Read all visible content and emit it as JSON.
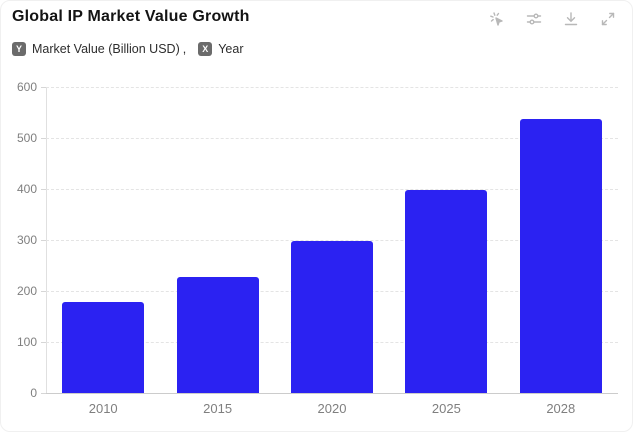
{
  "header": {
    "title": "Global IP Market Value Growth",
    "axis_legend": {
      "y_badge": "Y",
      "y_label": "Market Value (Billion USD)",
      "separator": ",",
      "x_badge": "X",
      "x_label": "Year"
    },
    "toolbar_icons": [
      "click-pointer-icon",
      "sliders-icon",
      "download-icon",
      "expand-icon"
    ]
  },
  "colors": {
    "bar": "#2b22f2",
    "grid": "#e4e4e4",
    "axis": "#cccccc",
    "tick_label": "#7f7f7f",
    "icon": "#b8b8b8",
    "badge_bg": "#6b6b6b",
    "title_text": "#141414"
  },
  "chart_data": {
    "type": "bar",
    "title": "Global IP Market Value Growth",
    "categories": [
      "2010",
      "2015",
      "2020",
      "2025",
      "2028"
    ],
    "values": [
      178,
      228,
      298,
      398,
      538
    ],
    "xlabel": "Year",
    "ylabel": "Market Value (Billion USD)",
    "ylim": [
      0,
      600
    ],
    "yticks": [
      0,
      100,
      200,
      300,
      400,
      500,
      600
    ],
    "grid": "horizontal-dashed",
    "legend_position": "none",
    "bar_color": "#2b22f2"
  }
}
